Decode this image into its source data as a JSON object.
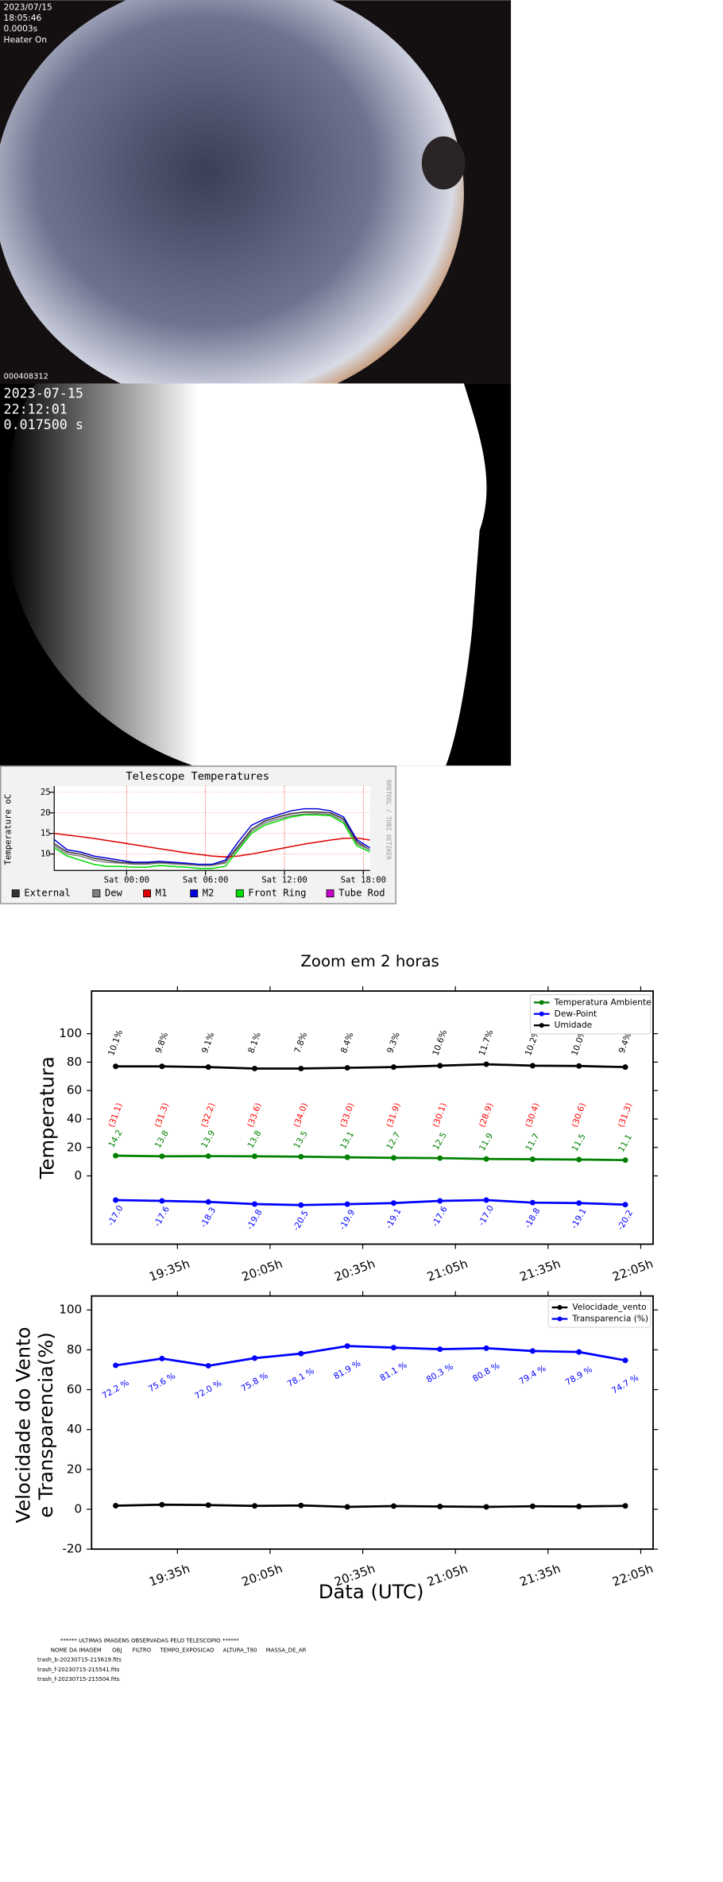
{
  "camera1": {
    "date": "2023/07/15",
    "time": "18:05:46",
    "exposure": "0.0003s",
    "status": "Heater On",
    "frame": "000408312"
  },
  "camera2": {
    "date": "2023-07-15",
    "time": "22:12:01",
    "exposure": "0.017500 s"
  },
  "chart_data": [
    {
      "type": "line",
      "title": "Telescope Temperatures",
      "ylabel": "Temperature oC",
      "side_text": "RRDTOOL / TOBI OETIKER",
      "x": [
        -5.5,
        -4.5,
        -3.5,
        -2.5,
        -1.5,
        -0.5,
        0.5,
        1.5,
        2.5,
        3.5,
        4.5,
        5.5,
        6.5,
        7.5,
        8.5,
        9.5,
        10.5,
        11.5,
        12.5,
        13.5,
        14.5,
        15.5,
        16.5,
        17.5,
        18.5
      ],
      "xlim": [
        -5.5,
        18.5
      ],
      "xticks": [
        {
          "value": 0,
          "label": "Sat 00:00"
        },
        {
          "value": 6,
          "label": "Sat 06:00"
        },
        {
          "value": 12,
          "label": "Sat 12:00"
        },
        {
          "value": 18,
          "label": "Sat 18:00"
        }
      ],
      "ylim": [
        6,
        26.5
      ],
      "yticks": [
        10,
        15,
        20,
        25
      ],
      "grid": true,
      "legend": "bottom",
      "series": [
        {
          "name": "External",
          "color": "#333333",
          "values": [
            12.5,
            10.5,
            10,
            9,
            8.5,
            8,
            7.8,
            7.8,
            8,
            7.8,
            7.6,
            7.3,
            7.3,
            8,
            12,
            16,
            18,
            19,
            19.8,
            20.2,
            20.2,
            20,
            18.5,
            13,
            11
          ]
        },
        {
          "name": "Dew",
          "color": "#808080",
          "values": [
            12,
            10,
            9.5,
            8.5,
            8,
            7.8,
            7.5,
            7.5,
            7.8,
            7.6,
            7.4,
            7.2,
            7.2,
            7.8,
            11.5,
            15.5,
            17.5,
            18.5,
            19.3,
            19.7,
            19.8,
            19.6,
            18,
            12.5,
            11
          ]
        },
        {
          "name": "M1",
          "color": "#dd0000",
          "values": [
            15,
            14.6,
            14.2,
            13.8,
            13.3,
            12.8,
            12.3,
            11.8,
            11.3,
            10.8,
            10.3,
            9.9,
            9.5,
            9.3,
            9.5,
            10,
            10.6,
            11.2,
            11.8,
            12.4,
            12.9,
            13.4,
            13.8,
            13.9,
            13.4
          ]
        },
        {
          "name": "M2",
          "color": "#0000dd",
          "values": [
            13.5,
            11,
            10.5,
            9.5,
            9,
            8.5,
            8,
            8,
            8.2,
            8,
            7.8,
            7.5,
            7.5,
            8.5,
            13,
            17,
            18.5,
            19.5,
            20.5,
            21,
            21,
            20.5,
            19,
            13.5,
            11.5
          ]
        },
        {
          "name": "Front Ring",
          "color": "#00dd00",
          "values": [
            11.5,
            9.5,
            8.5,
            7.5,
            7,
            7,
            6.8,
            6.8,
            7.2,
            7,
            6.8,
            6.5,
            6.5,
            7,
            11,
            15,
            17,
            18,
            19,
            19.5,
            19.5,
            19.3,
            17.5,
            12,
            10.5
          ]
        },
        {
          "name": "Tube Rod",
          "color": "#cc00cc",
          "values": [
            null,
            null,
            null,
            null,
            null,
            null,
            null,
            null,
            null,
            null,
            null,
            null,
            null,
            null,
            null,
            null,
            null,
            null,
            null,
            null,
            null,
            null,
            null,
            null,
            null
          ]
        }
      ]
    },
    {
      "type": "line",
      "title": "Zoom em 2 horas",
      "ylabel": "Temperatura",
      "x": [
        19.25,
        19.5,
        19.75,
        20,
        20.25,
        20.5,
        20.75,
        21,
        21.25,
        21.5,
        21.75,
        22
      ],
      "xlim": [
        19.12,
        22.15
      ],
      "xticks": [
        {
          "value": 19.5833,
          "label": "19:35h"
        },
        {
          "value": 20.0833,
          "label": "20:05h"
        },
        {
          "value": 20.5833,
          "label": "20:35h"
        },
        {
          "value": 21.0833,
          "label": "21:05h"
        },
        {
          "value": 21.5833,
          "label": "21:35h"
        },
        {
          "value": 22.0833,
          "label": "22:05h"
        }
      ],
      "ylim": [
        -48,
        130
      ],
      "yticks": [
        0,
        20,
        40,
        60,
        80,
        100
      ],
      "grid": false,
      "legend": "upper right",
      "series": [
        {
          "name": "Temperatura Ambiente",
          "color": "#008000",
          "values": [
            14.2,
            13.8,
            13.9,
            13.8,
            13.5,
            13.1,
            12.7,
            12.5,
            11.9,
            11.7,
            11.5,
            11.1
          ],
          "value_labels": [
            "14.2",
            "13.8",
            "13.9",
            "13.8",
            "13.5",
            "13.1",
            "12.7",
            "12.5",
            "11.9",
            "11.7",
            "11.5",
            "11.1"
          ]
        },
        {
          "name": "Dew-Point",
          "color": "#0000ff",
          "values": [
            -17.0,
            -17.6,
            -18.3,
            -19.8,
            -20.5,
            -19.9,
            -19.1,
            -17.6,
            -17.0,
            -18.8,
            -19.1,
            -20.2
          ],
          "value_labels": [
            "-17.0",
            "-17.6",
            "-18.3",
            "-19.8",
            "-20.5",
            "-19.9",
            "-19.1",
            "-17.6",
            "-17.0",
            "-18.8",
            "-19.1",
            "-20.2"
          ]
        },
        {
          "name": "Umidade",
          "color": "#000000",
          "values": [
            77,
            77,
            76.5,
            75.5,
            75.5,
            76,
            76.5,
            77.5,
            78.5,
            77.5,
            77.3,
            76.5
          ]
        }
      ],
      "annotations": [
        {
          "color": "#000000",
          "texts": [
            "10.1%",
            "9.8%",
            "9.1%",
            "8.1%",
            "7.8%",
            "8.4%",
            "9.3%",
            "10.6%",
            "11.7%",
            "10.2%",
            "10.0%",
            "9.4%"
          ]
        },
        {
          "color": "#ff0000",
          "texts": [
            "(31.1)",
            "(31.3)",
            "(32.2)",
            "(33.6)",
            "(34.0)",
            "(33.0)",
            "(31.9)",
            "(30.1)",
            "(28.9)",
            "(30.4)",
            "(30.6)",
            "(31.3)"
          ]
        }
      ]
    },
    {
      "type": "line",
      "xlabel": "Data (UTC)",
      "ylabel": [
        "Velocidade do Vento",
        "e Transparencia(%)"
      ],
      "x": [
        19.25,
        19.5,
        19.75,
        20,
        20.25,
        20.5,
        20.75,
        21,
        21.25,
        21.5,
        21.75,
        22
      ],
      "xlim": [
        19.12,
        22.15
      ],
      "xticks": [
        {
          "value": 19.5833,
          "label": "19:35h"
        },
        {
          "value": 20.0833,
          "label": "20:05h"
        },
        {
          "value": 20.5833,
          "label": "20:35h"
        },
        {
          "value": 21.0833,
          "label": "21:05h"
        },
        {
          "value": 21.5833,
          "label": "21:35h"
        },
        {
          "value": 22.0833,
          "label": "22:05h"
        }
      ],
      "ylim": [
        -20,
        107
      ],
      "yticks": [
        -20,
        0,
        20,
        40,
        60,
        80,
        100
      ],
      "grid": false,
      "legend": "upper right",
      "series": [
        {
          "name": "Velocidade_vento",
          "color": "#000000",
          "values": [
            1.8,
            2.3,
            2.1,
            1.7,
            1.9,
            1.2,
            1.6,
            1.4,
            1.2,
            1.5,
            1.4,
            1.7
          ]
        },
        {
          "name": "Transparencia (%)",
          "color": "#0000ff",
          "values": [
            72.2,
            75.6,
            72.0,
            75.8,
            78.1,
            81.9,
            81.1,
            80.3,
            80.8,
            79.4,
            78.9,
            74.7
          ],
          "value_labels": [
            "72.2 %",
            "75.6 %",
            "72.0 %",
            "75.8 %",
            "78.1 %",
            "81.9 %",
            "81.1 %",
            "80.3 %",
            "80.8 %",
            "79.4 %",
            "78.9 %",
            "74.7 %"
          ]
        }
      ]
    }
  ],
  "images_list": {
    "title": "****** ULTIMAS IMAGENS OBSERVADAS PELO TELESCOPIO ******",
    "header": "NOME DA IMAGEM      OBJ      FILTRO     TEMPO_EXPOSICAO     ALTURA_T80     MASSA_DE_AR",
    "files": [
      "trash_b-20230715-215619.fits",
      "trash_f-20230715-215541.fits",
      "trash_f-20230715-215504.fits"
    ]
  }
}
